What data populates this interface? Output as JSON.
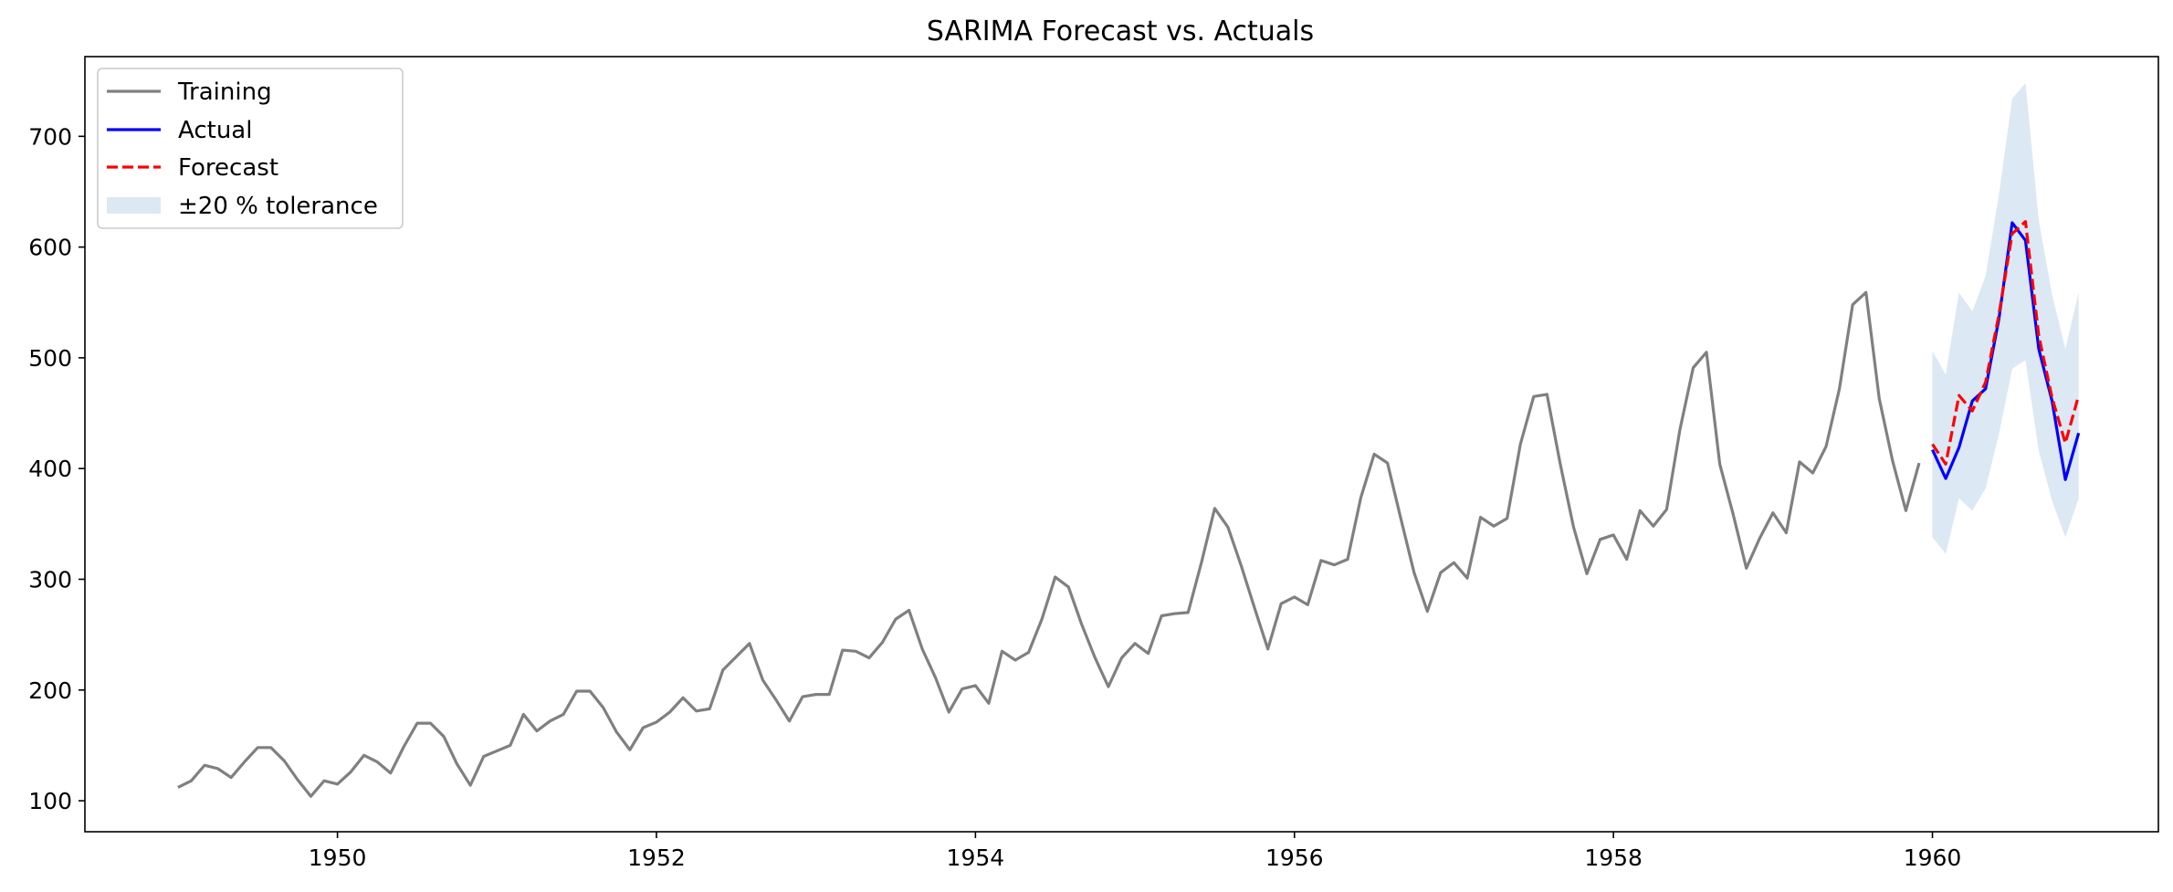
{
  "chart_data": {
    "type": "line",
    "title": "SARIMA Forecast vs. Actuals",
    "xlabel": "",
    "ylabel": "",
    "x_start": "1949-01",
    "x_ticks": [
      "1950",
      "1952",
      "1954",
      "1956",
      "1958",
      "1960"
    ],
    "y_ticks": [
      "100",
      "200",
      "300",
      "400",
      "500",
      "600",
      "700"
    ],
    "xlim": [
      "1948-06",
      "1961-06"
    ],
    "ylim": [
      72,
      772
    ],
    "grid": false,
    "legend_position": "top-left",
    "series": [
      {
        "name": "Training",
        "color": "#808080",
        "style": "solid",
        "x": [
          "1949-01",
          "1949-02",
          "1949-03",
          "1949-04",
          "1949-05",
          "1949-06",
          "1949-07",
          "1949-08",
          "1949-09",
          "1949-10",
          "1949-11",
          "1949-12",
          "1950-01",
          "1950-02",
          "1950-03",
          "1950-04",
          "1950-05",
          "1950-06",
          "1950-07",
          "1950-08",
          "1950-09",
          "1950-10",
          "1950-11",
          "1950-12",
          "1951-01",
          "1951-02",
          "1951-03",
          "1951-04",
          "1951-05",
          "1951-06",
          "1951-07",
          "1951-08",
          "1951-09",
          "1951-10",
          "1951-11",
          "1951-12",
          "1952-01",
          "1952-02",
          "1952-03",
          "1952-04",
          "1952-05",
          "1952-06",
          "1952-07",
          "1952-08",
          "1952-09",
          "1952-10",
          "1952-11",
          "1952-12",
          "1953-01",
          "1953-02",
          "1953-03",
          "1953-04",
          "1953-05",
          "1953-06",
          "1953-07",
          "1953-08",
          "1953-09",
          "1953-10",
          "1953-11",
          "1953-12",
          "1954-01",
          "1954-02",
          "1954-03",
          "1954-04",
          "1954-05",
          "1954-06",
          "1954-07",
          "1954-08",
          "1954-09",
          "1954-10",
          "1954-11",
          "1954-12",
          "1955-01",
          "1955-02",
          "1955-03",
          "1955-04",
          "1955-05",
          "1955-06",
          "1955-07",
          "1955-08",
          "1955-09",
          "1955-10",
          "1955-11",
          "1955-12",
          "1956-01",
          "1956-02",
          "1956-03",
          "1956-04",
          "1956-05",
          "1956-06",
          "1956-07",
          "1956-08",
          "1956-09",
          "1956-10",
          "1956-11",
          "1956-12",
          "1957-01",
          "1957-02",
          "1957-03",
          "1957-04",
          "1957-05",
          "1957-06",
          "1957-07",
          "1957-08",
          "1957-09",
          "1957-10",
          "1957-11",
          "1957-12",
          "1958-01",
          "1958-02",
          "1958-03",
          "1958-04",
          "1958-05",
          "1958-06",
          "1958-07",
          "1958-08",
          "1958-09",
          "1958-10",
          "1958-11",
          "1958-12",
          "1959-01",
          "1959-02",
          "1959-03",
          "1959-04",
          "1959-05",
          "1959-06",
          "1959-07",
          "1959-08",
          "1959-09",
          "1959-10",
          "1959-11",
          "1959-12"
        ],
        "values": [
          112,
          118,
          132,
          129,
          121,
          135,
          148,
          148,
          136,
          119,
          104,
          118,
          115,
          126,
          141,
          135,
          125,
          149,
          170,
          170,
          158,
          133,
          114,
          140,
          145,
          150,
          178,
          163,
          172,
          178,
          199,
          199,
          184,
          162,
          146,
          166,
          171,
          180,
          193,
          181,
          183,
          218,
          230,
          242,
          209,
          191,
          172,
          194,
          196,
          196,
          236,
          235,
          229,
          243,
          264,
          272,
          237,
          211,
          180,
          201,
          204,
          188,
          235,
          227,
          234,
          264,
          302,
          293,
          259,
          229,
          203,
          229,
          242,
          233,
          267,
          269,
          270,
          315,
          364,
          347,
          312,
          274,
          237,
          278,
          284,
          277,
          317,
          313,
          318,
          374,
          413,
          405,
          355,
          306,
          271,
          306,
          315,
          301,
          356,
          348,
          355,
          422,
          465,
          467,
          404,
          347,
          305,
          336,
          340,
          318,
          362,
          348,
          363,
          435,
          491,
          505,
          404,
          359,
          310,
          337,
          360,
          342,
          406,
          396,
          420,
          472,
          548,
          559,
          463,
          407,
          362,
          405
        ]
      },
      {
        "name": "Actual",
        "color": "#0000ff",
        "style": "solid",
        "x": [
          "1960-01",
          "1960-02",
          "1960-03",
          "1960-04",
          "1960-05",
          "1960-06",
          "1960-07",
          "1960-08",
          "1960-09",
          "1960-10",
          "1960-11",
          "1960-12"
        ],
        "values": [
          417,
          391,
          419,
          461,
          472,
          535,
          622,
          606,
          508,
          461,
          390,
          432
        ]
      },
      {
        "name": "Forecast",
        "color": "#ff0000",
        "style": "dashed",
        "x": [
          "1960-01",
          "1960-02",
          "1960-03",
          "1960-04",
          "1960-05",
          "1960-06",
          "1960-07",
          "1960-08",
          "1960-09",
          "1960-10",
          "1960-11",
          "1960-12"
        ],
        "values": [
          422,
          404,
          466,
          452,
          478,
          539,
          612,
          623,
          520,
          464,
          423,
          466
        ]
      }
    ],
    "band": {
      "name": "±20 % tolerance",
      "color": "#dce8f3",
      "x": [
        "1960-01",
        "1960-02",
        "1960-03",
        "1960-04",
        "1960-05",
        "1960-06",
        "1960-07",
        "1960-08",
        "1960-09",
        "1960-10",
        "1960-11",
        "1960-12"
      ],
      "lower": [
        338,
        323,
        373,
        362,
        382,
        431,
        490,
        498,
        416,
        371,
        338,
        373
      ],
      "upper": [
        506,
        485,
        559,
        542,
        574,
        647,
        734,
        748,
        624,
        557,
        508,
        559
      ]
    }
  }
}
